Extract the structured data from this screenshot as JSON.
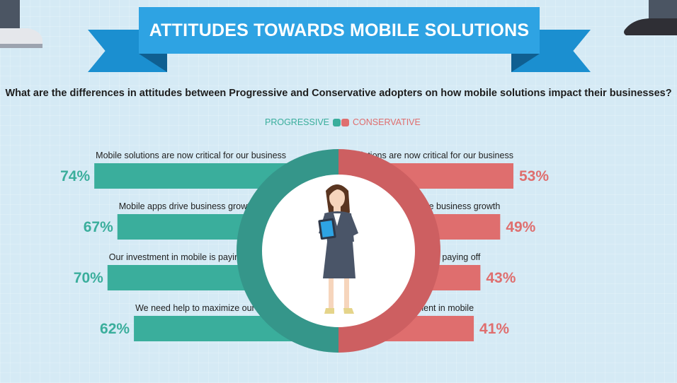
{
  "header": {
    "title": "ATTITUDES TOWARDS MOBILE SOLUTIONS",
    "question": "What are the differences in attitudes between Progressive and Conservative adopters on how mobile solutions impact their businesses?"
  },
  "legend": {
    "progressive": "PROGRESSIVE",
    "conservative": "CONSERVATIVE"
  },
  "colors": {
    "progressive": "#3aae9c",
    "conservative": "#df6e6e",
    "ribbon": "#2ea3e3"
  },
  "chart_data": {
    "type": "bar",
    "categories": [
      "Mobile solutions are now critical for our business",
      "Mobile apps drive business growth",
      "Our investment in mobile is paying off",
      "We need help to maximize our investment in mobile"
    ],
    "series": [
      {
        "name": "PROGRESSIVE",
        "values": [
          74,
          67,
          70,
          62
        ],
        "labels": [
          "74%",
          "67%",
          "70%",
          "62%"
        ]
      },
      {
        "name": "CONSERVATIVE",
        "values": [
          53,
          49,
          43,
          41
        ],
        "labels": [
          "53%",
          "49%",
          "43%",
          "41%"
        ]
      }
    ],
    "legend": "top-center"
  }
}
